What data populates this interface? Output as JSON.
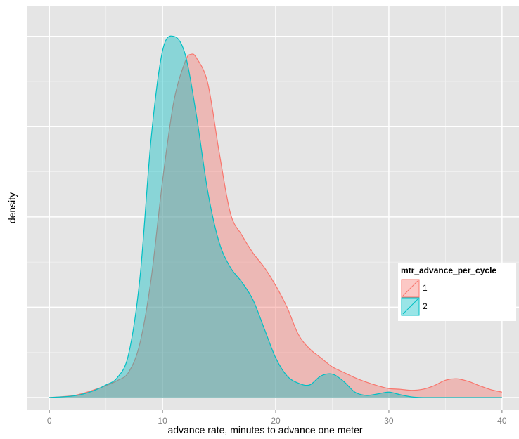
{
  "chart_data": {
    "type": "area",
    "title": "",
    "xlabel": "advance rate, minutes to advance one meter",
    "ylabel": "density",
    "xlim": [
      -2,
      41.5
    ],
    "ylim": [
      -0.0035,
      0.1085
    ],
    "x_ticks": [
      0,
      10,
      20,
      30,
      40
    ],
    "x_tick_labels": [
      "0",
      "10",
      "20",
      "30",
      "40"
    ],
    "y_gridlines": [
      0,
      0.025,
      0.05,
      0.075,
      0.1
    ],
    "grid": true,
    "legend": {
      "title": "mtr_advance_per_cycle",
      "placement": "right",
      "entries": [
        "1",
        "2"
      ]
    },
    "series": [
      {
        "name": "1",
        "color": "#F8766D",
        "fill": "rgba(248,118,109,0.4)",
        "x": [
          0,
          2,
          3,
          4,
          5,
          6,
          7,
          8,
          9,
          10,
          11,
          12,
          12.5,
          13,
          14,
          15,
          16,
          17,
          18,
          19,
          20,
          21,
          22,
          23,
          24,
          25,
          26,
          27,
          28,
          29,
          30,
          31,
          32,
          33,
          34,
          35,
          36,
          37,
          38,
          39,
          40
        ],
        "y": [
          0,
          0.0005,
          0.0012,
          0.0022,
          0.0033,
          0.0047,
          0.007,
          0.015,
          0.033,
          0.06,
          0.082,
          0.093,
          0.095,
          0.094,
          0.087,
          0.068,
          0.051,
          0.045,
          0.04,
          0.036,
          0.031,
          0.025,
          0.0175,
          0.0135,
          0.011,
          0.0085,
          0.007,
          0.0055,
          0.0043,
          0.0033,
          0.0025,
          0.0023,
          0.002,
          0.0023,
          0.0033,
          0.0048,
          0.0052,
          0.0045,
          0.0033,
          0.0022,
          0.0015
        ]
      },
      {
        "name": "2",
        "color": "#00BFC4",
        "fill": "rgba(0,191,196,0.4)",
        "x": [
          0,
          2,
          3,
          4,
          5,
          6,
          7,
          8,
          9,
          10,
          11,
          12,
          13,
          14,
          15,
          16,
          17,
          18,
          19,
          20,
          21,
          22,
          23,
          24,
          25,
          26,
          27,
          28,
          29,
          30,
          31,
          32,
          33,
          34,
          35,
          36,
          37,
          38,
          39,
          40
        ],
        "y": [
          0,
          0.0004,
          0.001,
          0.002,
          0.0035,
          0.0055,
          0.012,
          0.033,
          0.072,
          0.096,
          0.1,
          0.095,
          0.078,
          0.057,
          0.043,
          0.036,
          0.032,
          0.027,
          0.019,
          0.011,
          0.006,
          0.004,
          0.0035,
          0.006,
          0.0065,
          0.0045,
          0.0015,
          0.0006,
          0.001,
          0.0015,
          0.0008,
          0.0002,
          0,
          0,
          0,
          0,
          0,
          0,
          0,
          0
        ]
      }
    ]
  }
}
